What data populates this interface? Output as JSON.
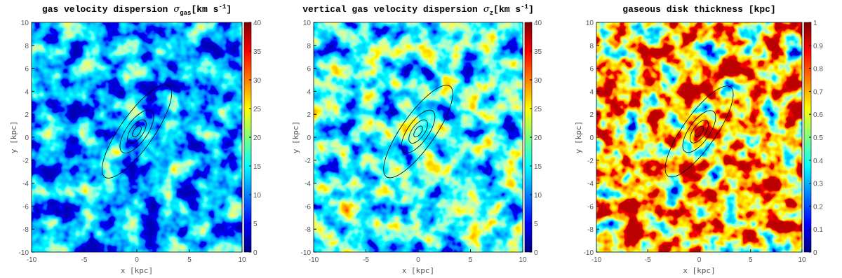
{
  "chart_data": [
    {
      "type": "heatmap",
      "title": "gas velocity dispersion",
      "symbol": "σ",
      "symbol_sub": "gas",
      "unit": [
        "[km s",
        "-1",
        "]"
      ],
      "xlabel": "x [kpc]",
      "ylabel": "y [kpc]",
      "colormap": "jet",
      "xlim": [
        -10,
        10
      ],
      "xticks": [
        -10,
        -5,
        0,
        5,
        10
      ],
      "ylim": [
        -10,
        10
      ],
      "yticks": [
        -10,
        -8,
        -6,
        -4,
        -2,
        0,
        2,
        4,
        6,
        8,
        10
      ],
      "clim": [
        0,
        40
      ],
      "cticks": [
        0,
        5,
        10,
        15,
        20,
        25,
        30,
        35,
        40
      ]
    },
    {
      "type": "heatmap",
      "title": "vertical gas velocity dispersion",
      "symbol": "σ",
      "symbol_sub": "z",
      "unit": [
        "[km s",
        "-1",
        "]"
      ],
      "xlabel": "x [kpc]",
      "ylabel": "y [kpc]",
      "colormap": "jet",
      "xlim": [
        -10,
        10
      ],
      "xticks": [
        -10,
        -5,
        0,
        5,
        10
      ],
      "ylim": [
        -10,
        10
      ],
      "yticks": [
        -10,
        -8,
        -6,
        -4,
        -2,
        0,
        2,
        4,
        6,
        8,
        10
      ],
      "clim": [
        0,
        40
      ],
      "cticks": [
        0,
        5,
        10,
        15,
        20,
        25,
        30,
        35,
        40
      ]
    },
    {
      "type": "heatmap",
      "title": "gaseous disk thickness [kpc]",
      "xlabel": "x [kpc]",
      "ylabel": "y [kpc]",
      "colormap": "jet",
      "xlim": [
        -10,
        10
      ],
      "xticks": [
        -10,
        -5,
        0,
        5,
        10
      ],
      "ylim": [
        -10,
        10
      ],
      "yticks": [
        -10,
        -8,
        -6,
        -4,
        -2,
        0,
        2,
        4,
        6,
        8,
        10
      ],
      "clim": [
        0,
        1
      ],
      "cticks": [
        0,
        0.1,
        0.2,
        0.3,
        0.4,
        0.5,
        0.6,
        0.7,
        0.8,
        0.9,
        1
      ]
    }
  ]
}
